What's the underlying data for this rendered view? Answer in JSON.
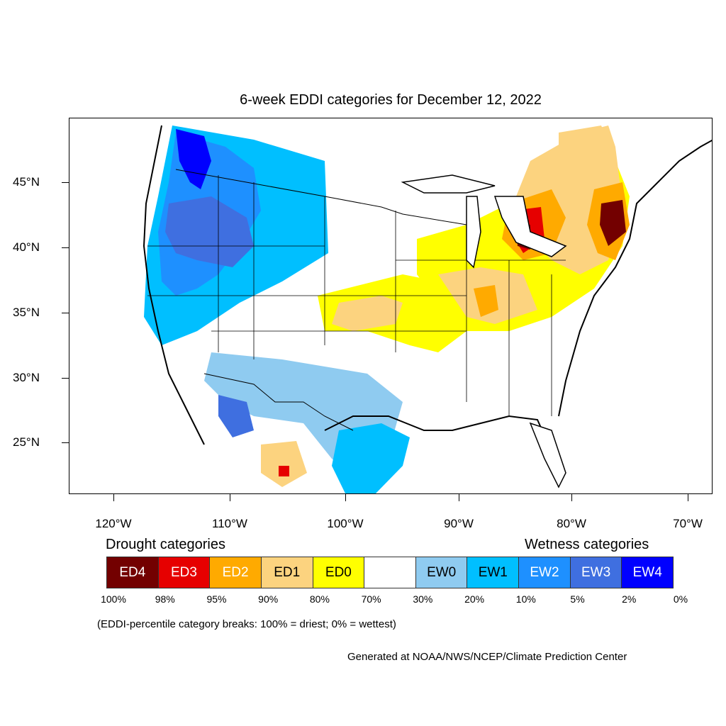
{
  "title": "6-week EDDI categories for December 12, 2022",
  "lat_labels": [
    "45°N",
    "40°N",
    "35°N",
    "30°N",
    "25°N"
  ],
  "lon_labels": [
    "120°W",
    "110°W",
    "100°W",
    "90°W",
    "80°W",
    "70°W"
  ],
  "legend": {
    "drought_heading": "Drought categories",
    "wetness_heading": "Wetness categories",
    "categories": [
      {
        "label": "ED4",
        "color": "#730000",
        "text_color": "#ffffff"
      },
      {
        "label": "ED3",
        "color": "#e60000",
        "text_color": "#ffffff"
      },
      {
        "label": "ED2",
        "color": "#ffaa00",
        "text_color": "#ffffff"
      },
      {
        "label": "ED1",
        "color": "#fcd37f",
        "text_color": "#000000"
      },
      {
        "label": "ED0",
        "color": "#ffff00",
        "text_color": "#000000"
      },
      {
        "label": "",
        "color": "#ffffff",
        "text_color": "#000000"
      },
      {
        "label": "EW0",
        "color": "#8fcbf0",
        "text_color": "#000000"
      },
      {
        "label": "EW1",
        "color": "#00bfff",
        "text_color": "#000000"
      },
      {
        "label": "EW2",
        "color": "#1e90ff",
        "text_color": "#ffffff"
      },
      {
        "label": "EW3",
        "color": "#3f6fe0",
        "text_color": "#ffffff"
      },
      {
        "label": "EW4",
        "color": "#0000ff",
        "text_color": "#ffffff"
      }
    ],
    "breaks": [
      "100%",
      "98%",
      "95%",
      "90%",
      "80%",
      "70%",
      "30%",
      "20%",
      "10%",
      "5%",
      "2%",
      "0%"
    ]
  },
  "note": "(EDDI-percentile category breaks: 100% = driest; 0% = wettest)",
  "credit": "Generated at NOAA/NWS/NCEP/Climate Prediction Center"
}
